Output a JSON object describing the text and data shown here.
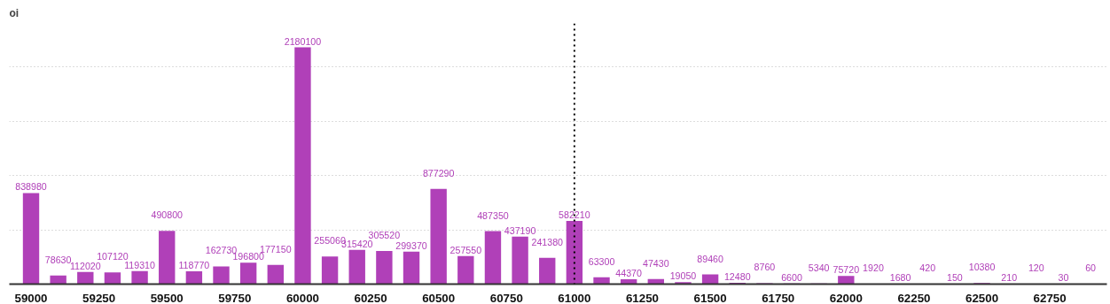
{
  "chart_data": {
    "type": "bar",
    "ylabel": "oi",
    "x": [
      59000,
      59100,
      59200,
      59300,
      59400,
      59500,
      59600,
      59700,
      59800,
      59900,
      60000,
      60100,
      60200,
      60300,
      60400,
      60500,
      60600,
      60700,
      60800,
      60900,
      61000,
      61100,
      61200,
      61300,
      61400,
      61500,
      61600,
      61700,
      61800,
      61900,
      62000,
      62100,
      62200,
      62300,
      62400,
      62500,
      62600,
      62700,
      62800,
      62900
    ],
    "series": [
      {
        "color": "#b040b8",
        "values": [
          838980,
          78630,
          112020,
          107120,
          119310,
          490800,
          118770,
          162730,
          196800,
          177150,
          2180100,
          255060,
          315420,
          305520,
          299370,
          877290,
          257550,
          487350,
          437190,
          241380,
          582210,
          63300,
          44370,
          47430,
          19050,
          89460,
          12480,
          8760,
          6600,
          5340,
          75720,
          1920,
          1680,
          420,
          150,
          10380,
          210,
          120,
          30,
          60
        ]
      }
    ],
    "data_labels": true,
    "xlim": [
      58920,
      62960
    ],
    "xticks": [
      59000,
      59250,
      59500,
      59750,
      60000,
      60250,
      60500,
      60750,
      61000,
      61250,
      61500,
      61750,
      62000,
      62250,
      62500,
      62750
    ],
    "ylim": [
      0,
      2400000
    ],
    "yticks": [
      {
        "value": 500000,
        "label": null
      },
      {
        "value": 1000000,
        "label": null
      },
      {
        "value": 1500000,
        "label": null
      },
      {
        "value": 2000000,
        "label": null
      }
    ],
    "tick_labels": "x",
    "grid": "y",
    "ref_lines": [
      {
        "axis": "x",
        "value": 61000,
        "color": "#000000",
        "line_style": "dotted"
      }
    ]
  }
}
